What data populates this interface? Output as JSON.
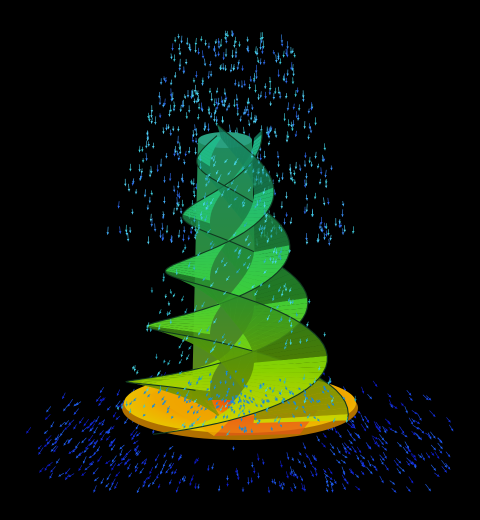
{
  "scene": {
    "subject": "helical-impeller-flow-field",
    "background_color": "#000000",
    "colormap": [
      "#0a1fd6",
      "#1aa0e0",
      "#25d6c8",
      "#22c86a",
      "#7fd800",
      "#e8e000",
      "#f0a000",
      "#e84000"
    ],
    "blades": 3,
    "vector_colors": {
      "top_column": "#45b4ff",
      "inner": "#3fc8d8",
      "outer_fan": "#1530e0"
    }
  }
}
